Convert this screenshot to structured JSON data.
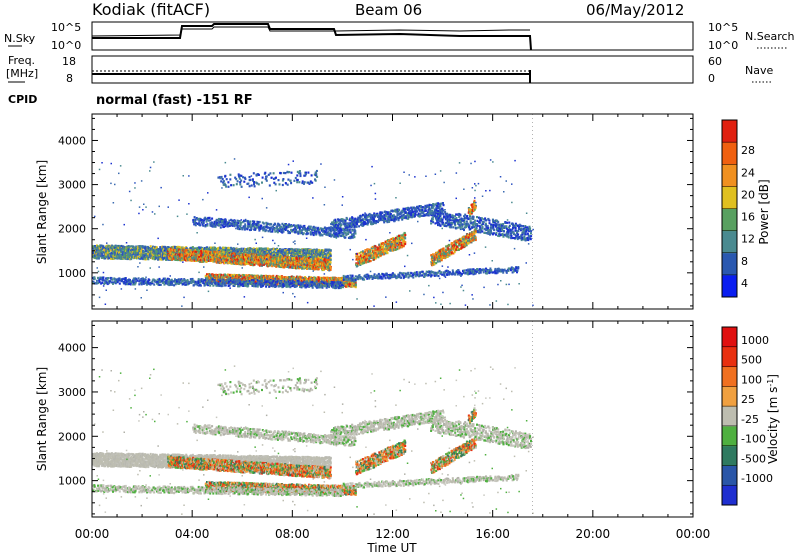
{
  "header": {
    "station": "Kodiak (fitACF)",
    "beam": "Beam 06",
    "date": "06/May/2012"
  },
  "panels": {
    "nsky": {
      "label": "N.Sky",
      "tick_top": "10^5",
      "tick_bottom": "10^0",
      "right_label": "N.Search",
      "right_tick_top": "10^5",
      "right_tick_bottom": "10^0"
    },
    "freq": {
      "label_line1": "Freq.",
      "label_line2": "[MHz]",
      "tick_top": "18",
      "tick_bottom": "8",
      "right_label": "Nave",
      "right_tick_top": "60",
      "right_tick_bottom": "0"
    },
    "cpid": {
      "label": "CPID",
      "value": "normal (fast) -151 RF"
    }
  },
  "chart_data": [
    {
      "type": "heatmap",
      "name": "power",
      "ylabel": "Slant Range [km]",
      "yticks": [
        1000,
        2000,
        3000,
        4000
      ],
      "ylim": [
        180,
        4600
      ],
      "xlim": [
        0,
        24
      ],
      "colorbar": {
        "label": "Power [dB]",
        "ticks": [
          "4",
          "8",
          "12",
          "16",
          "20",
          "24",
          "28"
        ],
        "colors": [
          "#0a1ef0",
          "#2a58b0",
          "#4a8a90",
          "#58a060",
          "#e0c020",
          "#f09020",
          "#f06010",
          "#e02010"
        ]
      },
      "data_end_hour": 17.6
    },
    {
      "type": "heatmap",
      "name": "velocity",
      "ylabel": "Slant Range [km]",
      "yticks": [
        1000,
        2000,
        3000,
        4000
      ],
      "ylim": [
        180,
        4600
      ],
      "xlim": [
        0,
        24
      ],
      "colorbar": {
        "label": "Velocity [m s^-1]",
        "ticks": [
          "1000",
          "500",
          "100",
          "25",
          "-25",
          "-100",
          "-500",
          "-1000"
        ],
        "colors": [
          "#1f2fd0",
          "#2a56a8",
          "#2f7a60",
          "#4fb040",
          "#bdbdb0",
          "#f0a040",
          "#f07020",
          "#e83010",
          "#e01010"
        ]
      },
      "data_end_hour": 17.6
    }
  ],
  "xaxis": {
    "ticks": [
      "00:00",
      "04:00",
      "08:00",
      "12:00",
      "16:00",
      "20:00",
      "00:00"
    ],
    "label": "Time UT"
  }
}
